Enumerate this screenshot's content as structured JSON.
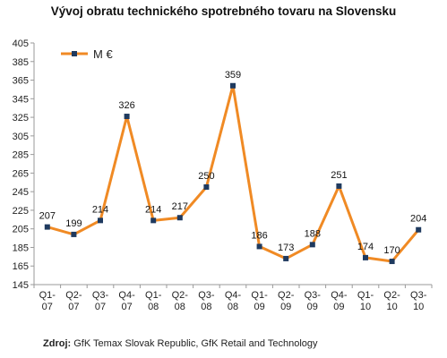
{
  "chart_data": {
    "type": "line",
    "title": "Vývoj obratu technického spotrebného tovaru na Slovensku",
    "xlabel": "",
    "ylabel": "",
    "categories": [
      "Q1-07",
      "Q2-07",
      "Q3-07",
      "Q4-07",
      "Q1-08",
      "Q2-08",
      "Q3-08",
      "Q4-08",
      "Q1-09",
      "Q2-09",
      "Q3-09",
      "Q4-09",
      "Q1-10",
      "Q2-10",
      "Q3-10"
    ],
    "series": [
      {
        "name": "M €",
        "values": [
          207,
          199,
          214,
          326,
          214,
          217,
          250,
          359,
          186,
          173,
          188,
          251,
          174,
          170,
          204
        ]
      }
    ],
    "ylim": [
      145,
      405
    ],
    "yticks": [
      145,
      165,
      185,
      205,
      225,
      245,
      265,
      285,
      305,
      325,
      345,
      365,
      385,
      405
    ],
    "grid": false,
    "legend_position": "top-left",
    "colors": {
      "line": "#f08a24",
      "marker": "#1f3a5f",
      "axis": "#9a9a9a"
    }
  },
  "source": {
    "label": "Zdroj:",
    "text": " GfK Temax Slovak Republic, GfK Retail and Technology"
  }
}
